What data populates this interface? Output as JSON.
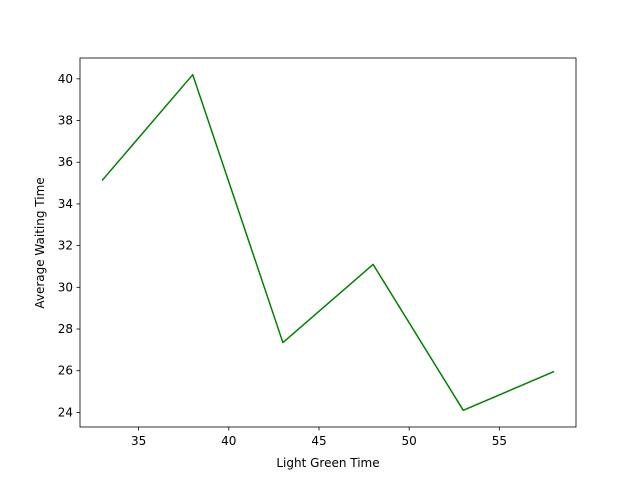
{
  "chart_data": {
    "type": "line",
    "title": "",
    "xlabel": "Light Green Time",
    "ylabel": "Average Waiting Time",
    "xlim": [
      31.75,
      59.25
    ],
    "ylim": [
      23.3,
      41.0
    ],
    "xticks": [
      35,
      40,
      45,
      50,
      55
    ],
    "yticks": [
      24,
      26,
      28,
      30,
      32,
      34,
      36,
      38,
      40
    ],
    "grid": false,
    "legend": "none",
    "series": [
      {
        "color": "#008000",
        "x": [
          33,
          38,
          43,
          48,
          53,
          58
        ],
        "y": [
          35.15,
          40.2,
          27.35,
          31.1,
          24.1,
          25.95
        ]
      }
    ]
  }
}
